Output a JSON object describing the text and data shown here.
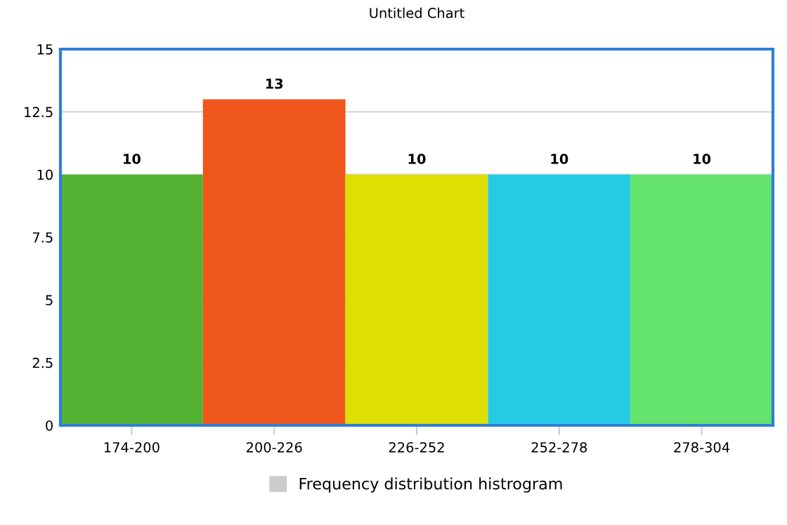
{
  "chart_data": {
    "type": "bar",
    "title": "Untitled Chart",
    "categories": [
      "174-200",
      "200-226",
      "226-252",
      "252-278",
      "278-304"
    ],
    "series": [
      {
        "name": "Frequency distribution histrogram",
        "color": "#cccccc",
        "colors": [
          "#52b334",
          "#ee561b",
          "#dde000",
          "#25cbe3",
          "#64e46c"
        ],
        "values": [
          10,
          13,
          10,
          10,
          10
        ]
      }
    ],
    "ylim": [
      0,
      15
    ],
    "yticks": [
      0,
      2.5,
      5,
      7.5,
      10,
      12.5,
      15
    ],
    "grid": "y",
    "legend": "bottom",
    "data_labels": true
  }
}
